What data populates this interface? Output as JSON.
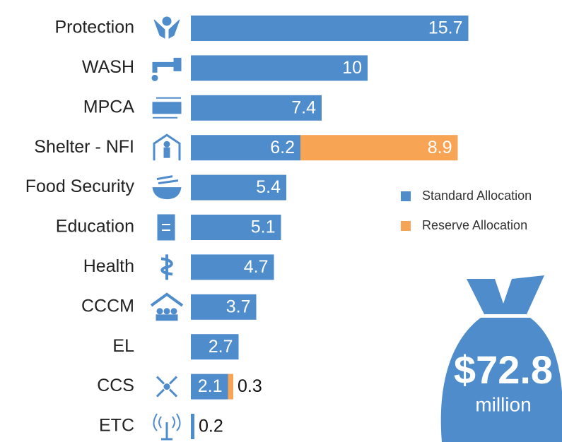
{
  "chart_data": {
    "type": "bar",
    "orientation": "horizontal",
    "stacked": true,
    "categories": [
      "Protection",
      "WASH",
      "MPCA",
      "Shelter - NFI",
      "Food Security",
      "Education",
      "Health",
      "CCCM",
      "EL",
      "CCS",
      "ETC"
    ],
    "series": [
      {
        "name": "Standard Allocation",
        "color": "#4f8ccc",
        "values": [
          15.7,
          10,
          7.4,
          6.2,
          5.4,
          5.1,
          4.7,
          3.7,
          2.7,
          2.1,
          0.2
        ]
      },
      {
        "name": "Reserve Allocation",
        "color": "#f8a455",
        "values": [
          null,
          null,
          null,
          8.9,
          null,
          null,
          null,
          null,
          null,
          0.3,
          null
        ]
      }
    ],
    "total": "$72.8",
    "total_unit": "million"
  }
}
